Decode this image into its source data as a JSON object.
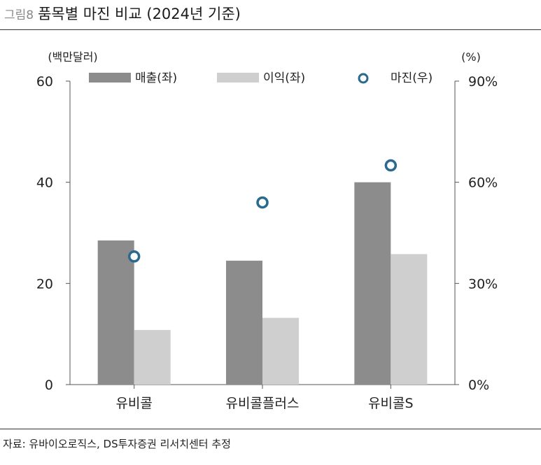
{
  "figure": {
    "label": "그림8",
    "title": "품목별 마진 비교 (2024년 기준)",
    "source": "자료: 유바이오로직스, DS투자증권 리서치센터 추정"
  },
  "colors": {
    "sales": "#8c8c8c",
    "profit": "#cfcfcf",
    "margin_stroke": "#2a6a8f",
    "axis": "#555555"
  },
  "chart_data": {
    "type": "bar",
    "categories": [
      "유비콜",
      "유비콜플러스",
      "유비콜S"
    ],
    "series": [
      {
        "name": "매출(좌)",
        "values": [
          28.5,
          24.5,
          40
        ],
        "axis": "left",
        "kind": "bar"
      },
      {
        "name": "이익(좌)",
        "values": [
          10.8,
          13.2,
          25.8
        ],
        "axis": "left",
        "kind": "bar"
      },
      {
        "name": "마진(우)",
        "values": [
          38,
          54,
          65
        ],
        "axis": "right",
        "kind": "marker"
      }
    ],
    "y_left": {
      "unit_label": "(백만달러)",
      "range": [
        0,
        60
      ],
      "ticks": [
        0,
        20,
        40,
        60
      ],
      "tick_labels": [
        "0",
        "20",
        "40",
        "60"
      ]
    },
    "y_right": {
      "unit_label": "(%)",
      "range": [
        0,
        90
      ],
      "ticks": [
        0,
        30,
        60,
        90
      ],
      "tick_labels": [
        "0%",
        "30%",
        "60%",
        "90%"
      ]
    },
    "grid": false,
    "legend_position": "top"
  }
}
